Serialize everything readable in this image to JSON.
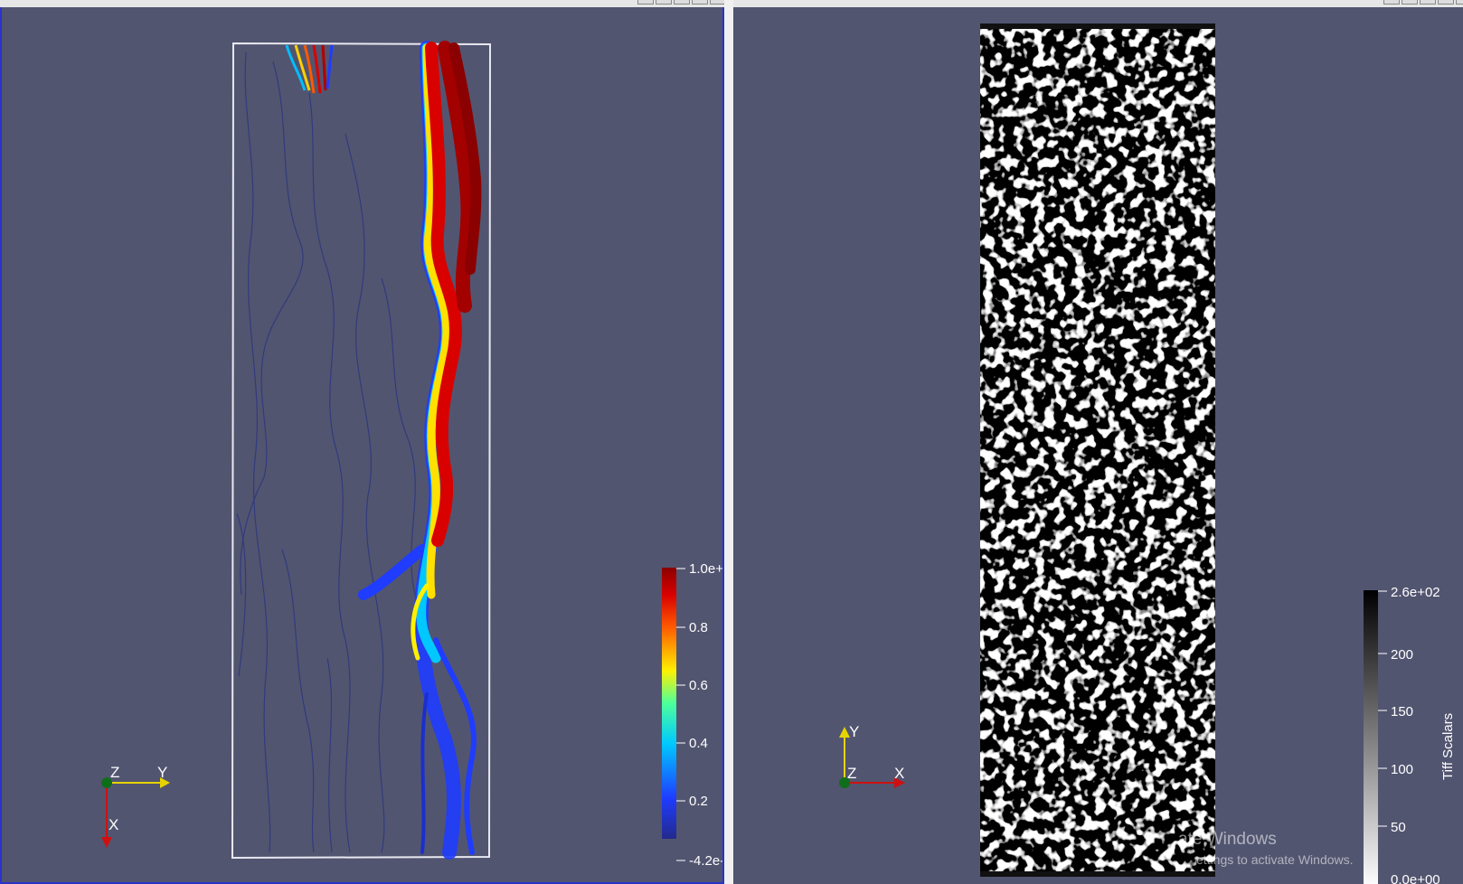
{
  "left_view": {
    "color_bar": {
      "labels": [
        "1.0e+",
        "0.8",
        "0.6",
        "0.4",
        "0.2",
        "-4.2e-"
      ]
    },
    "axes": {
      "z": "Z",
      "y": "Y",
      "x": "X"
    }
  },
  "right_view": {
    "color_bar": {
      "title": "Tiff Scalars",
      "labels": [
        "2.6e+02",
        "200",
        "150",
        "100",
        "50",
        "0.0e+00"
      ]
    },
    "axes": {
      "y": "Y",
      "z": "Z",
      "x": "X"
    }
  },
  "watermark": {
    "line1": "ate Windows",
    "line2": "ettings to activate Windows."
  },
  "colors": {
    "background": "#525570",
    "active_border": "#2a33c8",
    "streamline_red": "#b00000",
    "streamline_blue": "#1f3cff"
  }
}
